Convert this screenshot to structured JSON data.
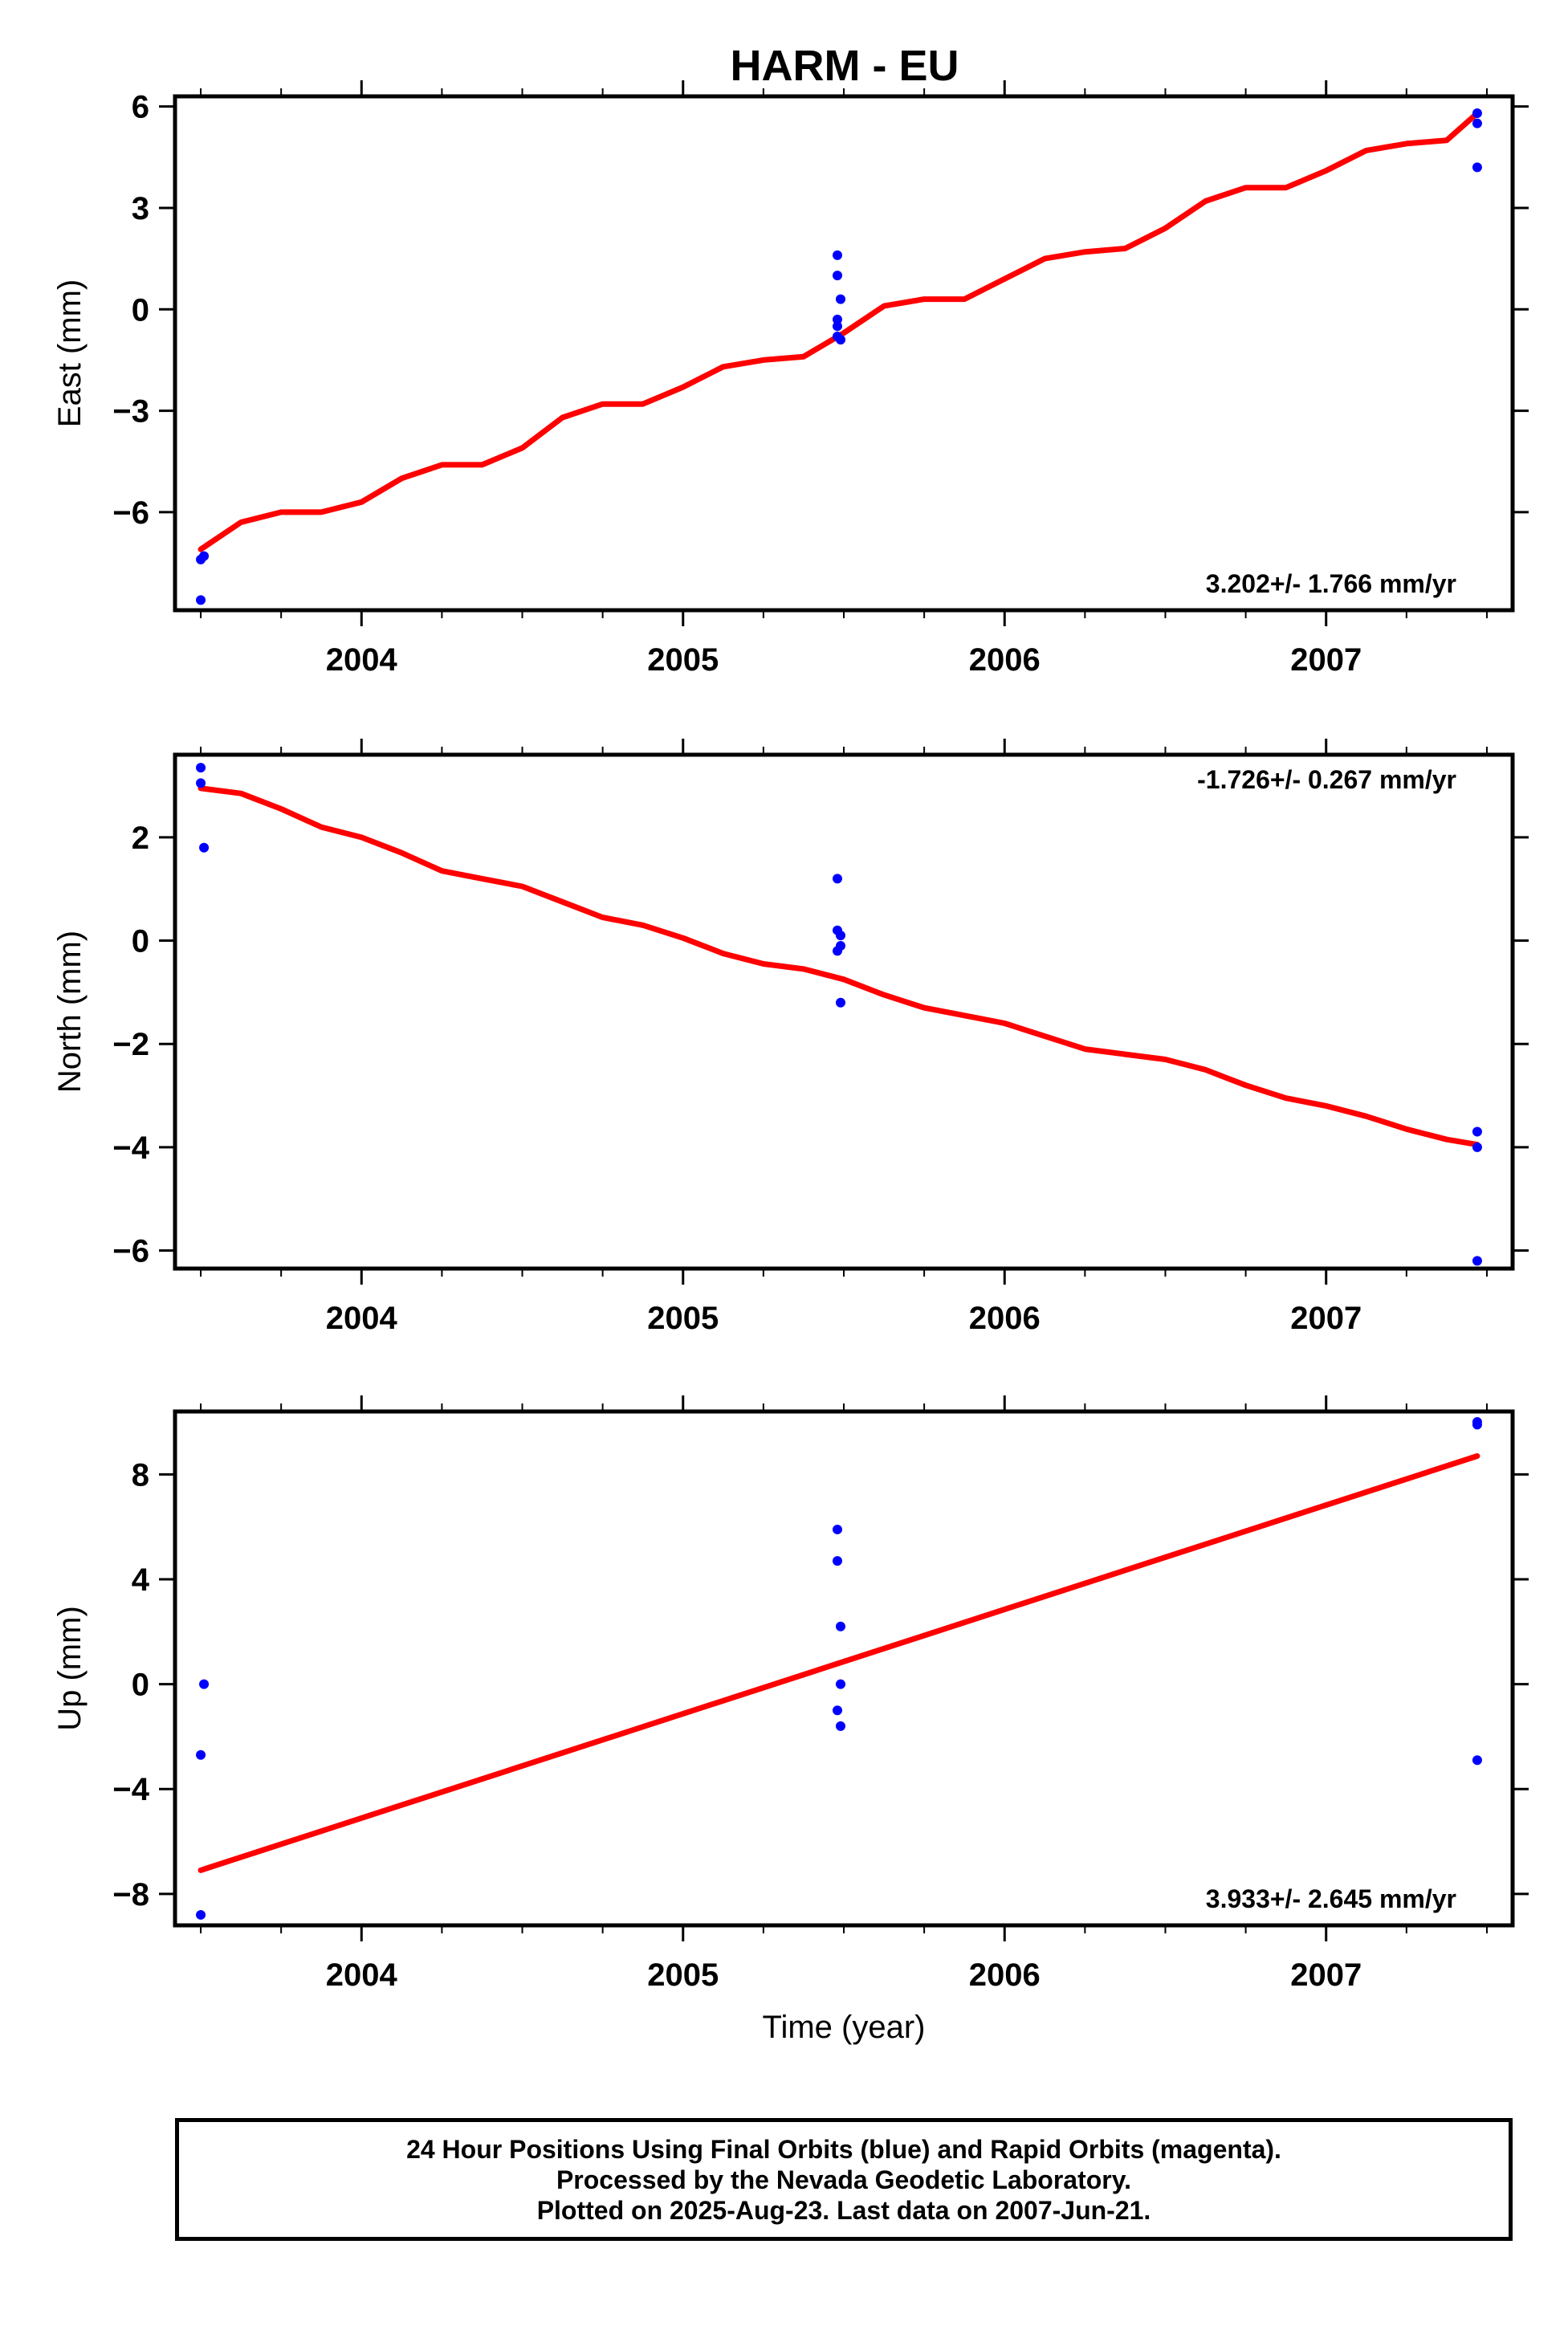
{
  "title": "HARM - EU",
  "colors": {
    "final_orbits": "#0000ff",
    "fit_line": "#ff0000",
    "frame": "#000000"
  },
  "chart_data": [
    {
      "type": "scatter",
      "panel": "east",
      "ylabel": "East (mm)",
      "xlim": [
        2003.42,
        2007.58
      ],
      "ylim": [
        -8.9,
        6.3
      ],
      "yticks": [
        -6,
        -3,
        0,
        3,
        6
      ],
      "yticklabels": [
        "−6",
        "−3",
        "0",
        "3",
        "6"
      ],
      "xticks": [
        2004,
        2005,
        2006,
        2007
      ],
      "xticklabels": [
        "2004",
        "2005",
        "2006",
        "2007"
      ],
      "rate_text": "3.202+/- 1.766 mm/yr",
      "rate_position": "bottom-right",
      "series": [
        {
          "kind": "points",
          "x": [
            2003.5,
            2003.51,
            2003.5,
            2005.48,
            2005.48,
            2005.49,
            2005.48,
            2005.48,
            2005.48,
            2005.49,
            2007.47,
            2007.47,
            2007.47
          ],
          "y": [
            -7.4,
            -7.3,
            -8.6,
            1.6,
            1.0,
            0.3,
            -0.3,
            -0.5,
            -0.8,
            -0.9,
            5.8,
            5.5,
            4.2
          ]
        },
        {
          "kind": "line",
          "x": [
            2003.5,
            2003.625,
            2003.75,
            2003.875,
            2004.0,
            2004.125,
            2004.25,
            2004.375,
            2004.5,
            2004.625,
            2004.75,
            2004.875,
            2005.0,
            2005.125,
            2005.25,
            2005.375,
            2005.5,
            2005.625,
            2005.75,
            2005.875,
            2006.0,
            2006.125,
            2006.25,
            2006.375,
            2006.5,
            2006.625,
            2006.75,
            2006.875,
            2007.0,
            2007.125,
            2007.25,
            2007.375,
            2007.47
          ],
          "y": [
            -7.1,
            -6.3,
            -6.0,
            -6.0,
            -5.7,
            -5.0,
            -4.6,
            -4.6,
            -4.1,
            -3.2,
            -2.8,
            -2.8,
            -2.3,
            -1.7,
            -1.5,
            -1.4,
            -0.7,
            0.1,
            0.3,
            0.3,
            0.9,
            1.5,
            1.7,
            1.8,
            2.4,
            3.2,
            3.6,
            3.6,
            4.1,
            4.7,
            4.9,
            5.0,
            5.8
          ]
        }
      ]
    },
    {
      "type": "scatter",
      "panel": "north",
      "ylabel": "North (mm)",
      "xlim": [
        2003.42,
        2007.58
      ],
      "ylim": [
        -6.35,
        3.6
      ],
      "yticks": [
        -6,
        -4,
        -2,
        0,
        2
      ],
      "yticklabels": [
        "−6",
        "−4",
        "−2",
        "0",
        "2"
      ],
      "xticks": [
        2004,
        2005,
        2006,
        2007
      ],
      "xticklabels": [
        "2004",
        "2005",
        "2006",
        "2007"
      ],
      "rate_text": "-1.726+/- 0.267 mm/yr",
      "rate_position": "top-right",
      "series": [
        {
          "kind": "points",
          "x": [
            2003.5,
            2003.5,
            2003.51,
            2005.48,
            2005.48,
            2005.49,
            2005.49,
            2005.48,
            2005.49,
            2007.47,
            2007.47,
            2007.47
          ],
          "y": [
            3.35,
            3.05,
            1.8,
            1.2,
            0.2,
            0.1,
            -0.1,
            -0.2,
            -1.2,
            -3.7,
            -4.0,
            -6.2
          ]
        },
        {
          "kind": "line",
          "x": [
            2003.5,
            2003.625,
            2003.75,
            2003.875,
            2004.0,
            2004.125,
            2004.25,
            2004.375,
            2004.5,
            2004.625,
            2004.75,
            2004.875,
            2005.0,
            2005.125,
            2005.25,
            2005.375,
            2005.5,
            2005.625,
            2005.75,
            2005.875,
            2006.0,
            2006.125,
            2006.25,
            2006.375,
            2006.5,
            2006.625,
            2006.75,
            2006.875,
            2007.0,
            2007.125,
            2007.25,
            2007.375,
            2007.47
          ],
          "y": [
            2.95,
            2.85,
            2.55,
            2.2,
            2.0,
            1.7,
            1.35,
            1.2,
            1.05,
            0.75,
            0.45,
            0.3,
            0.05,
            -0.25,
            -0.45,
            -0.55,
            -0.75,
            -1.05,
            -1.3,
            -1.45,
            -1.6,
            -1.85,
            -2.1,
            -2.2,
            -2.3,
            -2.5,
            -2.8,
            -3.05,
            -3.2,
            -3.4,
            -3.65,
            -3.85,
            -3.95
          ]
        }
      ]
    },
    {
      "type": "scatter",
      "panel": "up",
      "ylabel": "Up (mm)",
      "xlabel": "Time (year)",
      "xlim": [
        2003.42,
        2007.58
      ],
      "ylim": [
        -9.2,
        10.4
      ],
      "yticks": [
        -8,
        -4,
        0,
        4,
        8
      ],
      "yticklabels": [
        "−8",
        "−4",
        "0",
        "4",
        "8"
      ],
      "xticks": [
        2004,
        2005,
        2006,
        2007
      ],
      "xticklabels": [
        "2004",
        "2005",
        "2006",
        "2007"
      ],
      "rate_text": "3.933+/- 2.645 mm/yr",
      "rate_position": "bottom-right",
      "series": [
        {
          "kind": "points",
          "x": [
            2003.51,
            2003.5,
            2003.5,
            2005.48,
            2005.48,
            2005.49,
            2005.49,
            2005.48,
            2005.49,
            2007.47,
            2007.47,
            2007.47
          ],
          "y": [
            0.0,
            -2.7,
            -8.8,
            5.9,
            4.7,
            2.2,
            0.0,
            -1.0,
            -1.6,
            10.0,
            9.9,
            -2.9
          ]
        },
        {
          "kind": "line",
          "x": [
            2003.5,
            2007.47
          ],
          "y": [
            -7.1,
            8.7
          ]
        }
      ]
    }
  ],
  "caption": {
    "line1": "24 Hour Positions Using Final Orbits (blue) and Rapid Orbits (magenta).",
    "line2": "Processed by the Nevada Geodetic Laboratory.",
    "line3": "Plotted on 2025-Aug-23. Last data on 2007-Jun-21."
  }
}
